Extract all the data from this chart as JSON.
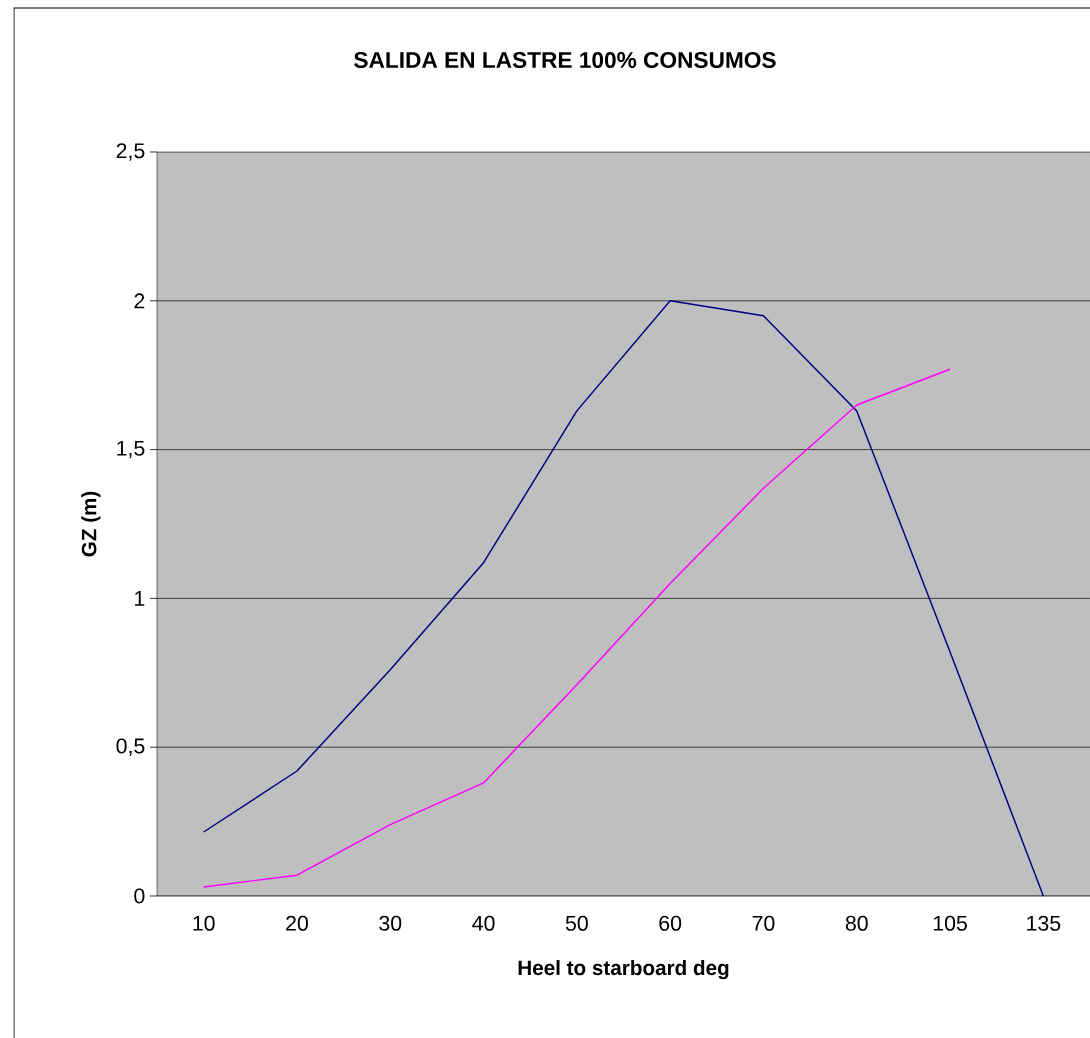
{
  "chart_data": {
    "type": "line",
    "title": "SALIDA EN LASTRE 100% CONSUMOS",
    "xlabel": "Heel to starboard deg",
    "ylabel": "GZ (m)",
    "categories": [
      "10",
      "20",
      "30",
      "40",
      "50",
      "60",
      "70",
      "80",
      "105",
      "135"
    ],
    "series": [
      {
        "color": "#000080",
        "values": [
          0.215,
          0.42,
          0.76,
          1.12,
          1.63,
          2.0,
          1.95,
          1.63,
          0.82,
          0
        ]
      },
      {
        "color": "#ff00ff",
        "values": [
          0.03,
          0.07,
          0.24,
          0.38,
          0.71,
          1.05,
          1.37,
          1.65,
          1.77,
          null
        ]
      }
    ],
    "ylim": [
      0,
      2.5
    ],
    "yticks": [
      0,
      {
        "value": 0.5,
        "label": "0,5"
      },
      1,
      {
        "value": 1.5,
        "label": "1,5"
      },
      2,
      {
        "value": 2.5,
        "label": "2,5"
      }
    ],
    "grid": "y",
    "marker": "none",
    "line_style": "solid"
  }
}
